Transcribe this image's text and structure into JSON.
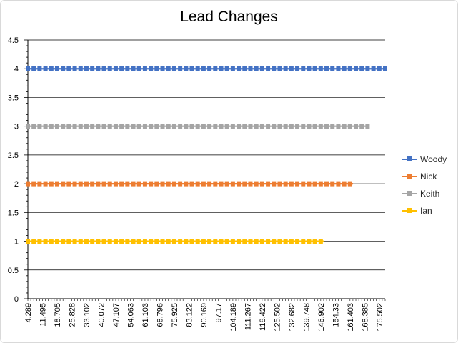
{
  "chart_data": {
    "type": "line",
    "title": "Lead Changes",
    "xlabel": "",
    "ylabel": "",
    "ylim": [
      0,
      4.5
    ],
    "yticks": [
      "0",
      "0.5",
      "1",
      "1.5",
      "2",
      "2.5",
      "3",
      "3.5",
      "4",
      "4.5"
    ],
    "x_tick_labels": [
      "4.289",
      "11.495",
      "18.705",
      "25.828",
      "33.102",
      "40.072",
      "47.107",
      "54.063",
      "61.103",
      "68.796",
      "75.925",
      "83.122",
      "90.169",
      "97.17",
      "104.189",
      "111.267",
      "118.422",
      "125.502",
      "132.682",
      "139.748",
      "146.902",
      "154.33",
      "161.403",
      "168.385",
      "175.502"
    ],
    "grid": "horizontal",
    "legend_position": "right",
    "series": [
      {
        "name": "Woody",
        "value": 4,
        "x_start": 4.289,
        "x_end": 175.502,
        "color": "#4472C4"
      },
      {
        "name": "Nick",
        "value": 2,
        "x_start": 4.289,
        "x_end": 161.403,
        "color": "#ED7D31"
      },
      {
        "name": "Keith",
        "value": 3,
        "x_start": 4.289,
        "x_end": 168.385,
        "color": "#A5A5A5"
      },
      {
        "name": "Ian",
        "value": 1,
        "x_start": 4.289,
        "x_end": 146.902,
        "color": "#FFC000"
      }
    ]
  }
}
